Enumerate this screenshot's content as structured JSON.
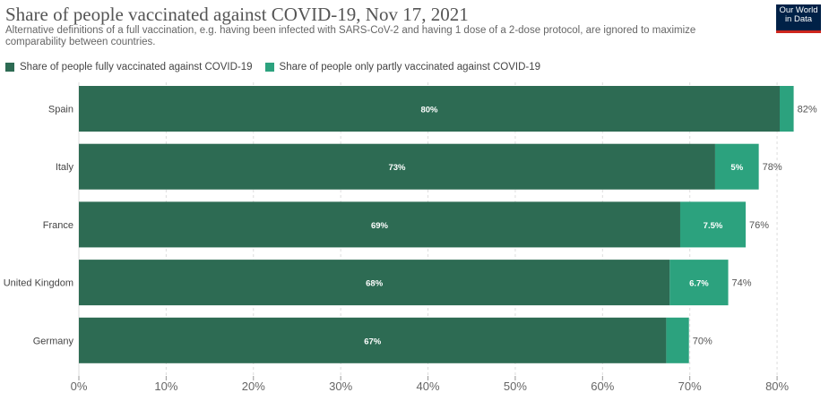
{
  "header": {
    "title": "Share of people vaccinated against COVID-19, Nov 17, 2021",
    "subtitle": "Alternative definitions of a full vaccination, e.g. having been infected with SARS-CoV-2 and having 1 dose of a 2-dose protocol, are ignored to maximize comparability between countries.",
    "logo_line1": "Our World",
    "logo_line2": "in Data"
  },
  "colors": {
    "fully": "#2d6b53",
    "partly": "#2ca27e",
    "grid": "#dddddd",
    "axis_text": "#666666"
  },
  "chart_data": {
    "type": "bar",
    "orientation": "horizontal",
    "stacked": true,
    "categories": [
      "Spain",
      "Italy",
      "France",
      "United Kingdom",
      "Germany"
    ],
    "series": [
      {
        "name": "Share of people fully vaccinated against COVID-19",
        "values": [
          80.3,
          72.9,
          68.9,
          67.7,
          67.3
        ],
        "labels": [
          "80%",
          "73%",
          "69%",
          "68%",
          "67%"
        ]
      },
      {
        "name": "Share of people only partly vaccinated against COVID-19",
        "values": [
          1.6,
          5.0,
          7.5,
          6.7,
          2.6
        ],
        "labels": [
          "",
          "5%",
          "7.5%",
          "6.7%",
          ""
        ]
      }
    ],
    "totals": [
      "82%",
      "78%",
      "76%",
      "74%",
      "70%"
    ],
    "xlim": [
      0,
      80.3
    ],
    "xticks": [
      "0%",
      "10%",
      "20%",
      "30%",
      "40%",
      "50%",
      "60%",
      "70%",
      "80%"
    ],
    "grid": true,
    "legend_position": "top-left"
  }
}
